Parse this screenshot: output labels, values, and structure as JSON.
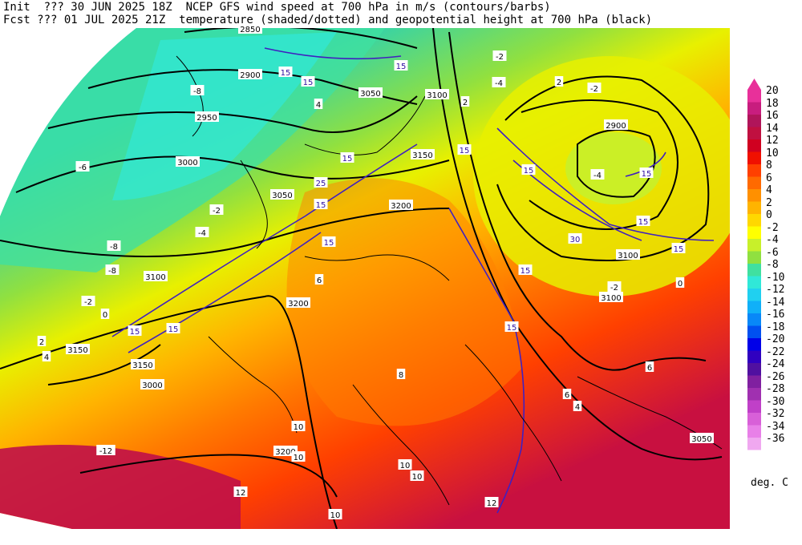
{
  "header": {
    "line1": "Init  ??? 30 JUN 2025 18Z  NCEP GFS wind speed at 700 hPa in m/s (contours/barbs)",
    "line2": "Fcst ??? 01 JUL 2025 21Z  temperature (shaded/dotted) and geopotential height at 700 hPa (black)"
  },
  "colorbar": {
    "units": "deg. C",
    "levels": [
      "20",
      "18",
      "16",
      "14",
      "12",
      "10",
      "8",
      "6",
      "4",
      "2",
      "0",
      "-2",
      "-4",
      "-6",
      "-8",
      "-10",
      "-12",
      "-14",
      "-16",
      "-18",
      "-20",
      "-22",
      "-24",
      "-26",
      "-28",
      "-30",
      "-32",
      "-34",
      "-36"
    ],
    "colors": [
      "#e8309a",
      "#c81d7e",
      "#b0155a",
      "#c01040",
      "#d00020",
      "#f01000",
      "#ff4000",
      "#ff6a00",
      "#ff9000",
      "#ffb400",
      "#ffd800",
      "#ffff00",
      "#c8f02a",
      "#90e040",
      "#40e0a0",
      "#30e8d8",
      "#20d0f0",
      "#10b0f8",
      "#0888f8",
      "#0050f0",
      "#0000e8",
      "#3000c0",
      "#5010a0",
      "#8020a0",
      "#a030b0",
      "#c040c8",
      "#d860d8",
      "#e880e8",
      "#f0a8f0"
    ]
  },
  "map": {
    "height_labels": [
      "2850",
      "2900",
      "2950",
      "3000",
      "3050",
      "3100",
      "3150",
      "3200",
      "3200",
      "3150",
      "3100",
      "3050",
      "3000",
      "2900",
      "3100",
      "3050",
      "3100",
      "3150",
      "3200"
    ],
    "wind_labels": [
      "15",
      "15",
      "15",
      "15",
      "15",
      "15",
      "15",
      "30",
      "15",
      "15",
      "15",
      "15",
      "15",
      "15",
      "15",
      "25",
      "15"
    ],
    "temp_labels": [
      "-12",
      "-8",
      "-6",
      "-4",
      "-8",
      "-2",
      "0",
      "2",
      "4",
      "-8",
      "2",
      "4",
      "6",
      "8",
      "10",
      "10",
      "12",
      "10",
      "10",
      "12",
      "10",
      "6",
      "4",
      "-2",
      "-4",
      "-2",
      "0",
      "2",
      "-2",
      "6",
      "-4",
      "-2"
    ]
  }
}
